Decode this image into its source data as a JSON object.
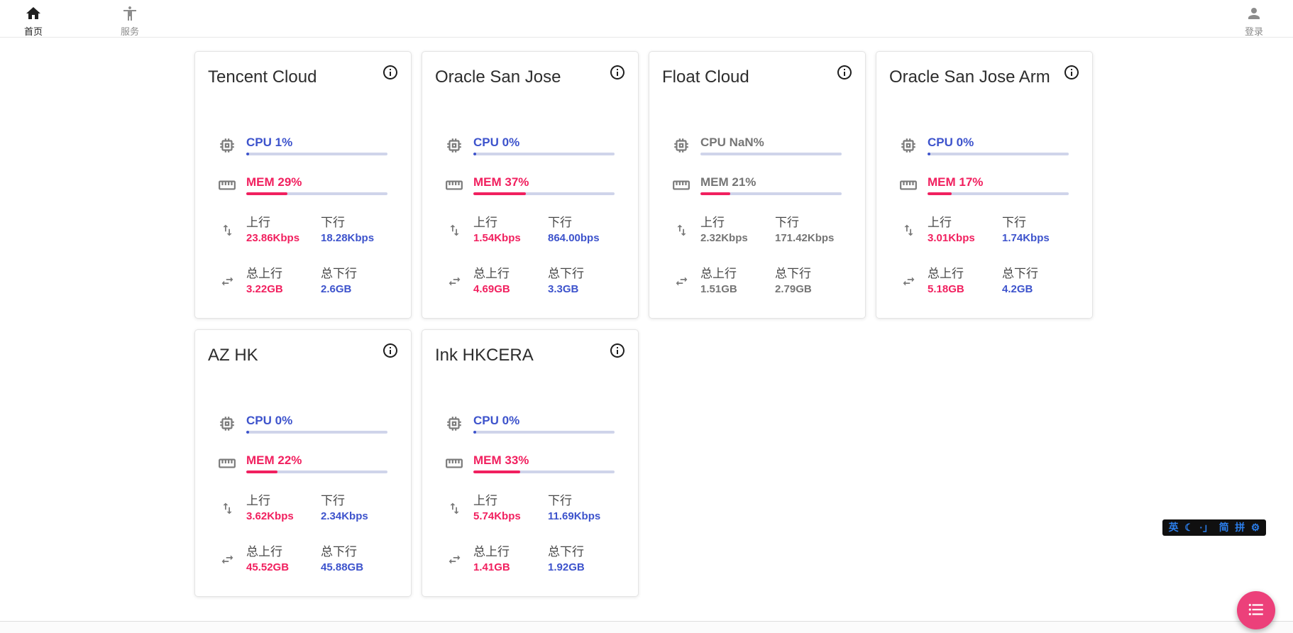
{
  "navbar": {
    "items": [
      {
        "label": "首页",
        "icon": "home-icon",
        "active": true
      },
      {
        "label": "服务",
        "icon": "accessibility-icon",
        "active": false
      }
    ],
    "login_label": "登录"
  },
  "labels": {
    "label_up": "上行",
    "label_down": "下行",
    "label_total_up": "总上行",
    "label_total_down": "总下行"
  },
  "colors": {
    "cpu_blue": "#3d53cc",
    "mem_pink": "#f1205f",
    "stale_gray": "#757575",
    "bar_track": "#cfd4ea",
    "fab_pink": "#ec407a",
    "ime_blue": "#2b7de9"
  },
  "servers": [
    {
      "name": "Tencent Cloud",
      "cpu_label": "CPU 1%",
      "cpu_pct": 1,
      "mem_label": "MEM 29%",
      "mem_pct": 29,
      "up_value": "23.86Kbps",
      "down_value": "18.28Kbps",
      "total_up_value": "3.22GB",
      "total_down_value": "2.6GB",
      "stale": false
    },
    {
      "name": "Oracle San Jose",
      "cpu_label": "CPU 0%",
      "cpu_pct": 0,
      "mem_label": "MEM 37%",
      "mem_pct": 37,
      "up_value": "1.54Kbps",
      "down_value": "864.00bps",
      "total_up_value": "4.69GB",
      "total_down_value": "3.3GB",
      "stale": false
    },
    {
      "name": "Float Cloud",
      "cpu_label": "CPU NaN%",
      "cpu_pct": null,
      "mem_label": "MEM 21%",
      "mem_pct": 21,
      "up_value": "2.32Kbps",
      "down_value": "171.42Kbps",
      "total_up_value": "1.51GB",
      "total_down_value": "2.79GB",
      "stale": true
    },
    {
      "name": "Oracle San Jose Arm",
      "cpu_label": "CPU 0%",
      "cpu_pct": 0,
      "mem_label": "MEM 17%",
      "mem_pct": 17,
      "up_value": "3.01Kbps",
      "down_value": "1.74Kbps",
      "total_up_value": "5.18GB",
      "total_down_value": "4.2GB",
      "stale": false
    },
    {
      "name": "AZ HK",
      "cpu_label": "CPU 0%",
      "cpu_pct": 0,
      "mem_label": "MEM 22%",
      "mem_pct": 22,
      "up_value": "3.62Kbps",
      "down_value": "2.34Kbps",
      "total_up_value": "45.52GB",
      "total_down_value": "45.88GB",
      "stale": false
    },
    {
      "name": "Ink HKCERA",
      "cpu_label": "CPU 0%",
      "cpu_pct": 0,
      "mem_label": "MEM 33%",
      "mem_pct": 33,
      "up_value": "5.74Kbps",
      "down_value": "11.69Kbps",
      "total_up_value": "1.41GB",
      "total_down_value": "1.92GB",
      "stale": false
    }
  ],
  "ime_bar": {
    "items": [
      {
        "glyph": "英",
        "name": "lang-mode"
      },
      {
        "glyph": "☾",
        "name": "fullwidth-moon"
      },
      {
        "glyph": "·」",
        "name": "punctuation"
      },
      {
        "glyph": "简",
        "name": "simplified-chinese"
      },
      {
        "glyph": "拼",
        "name": "pinyin"
      },
      {
        "glyph": "⚙",
        "name": "settings-gear"
      }
    ]
  }
}
